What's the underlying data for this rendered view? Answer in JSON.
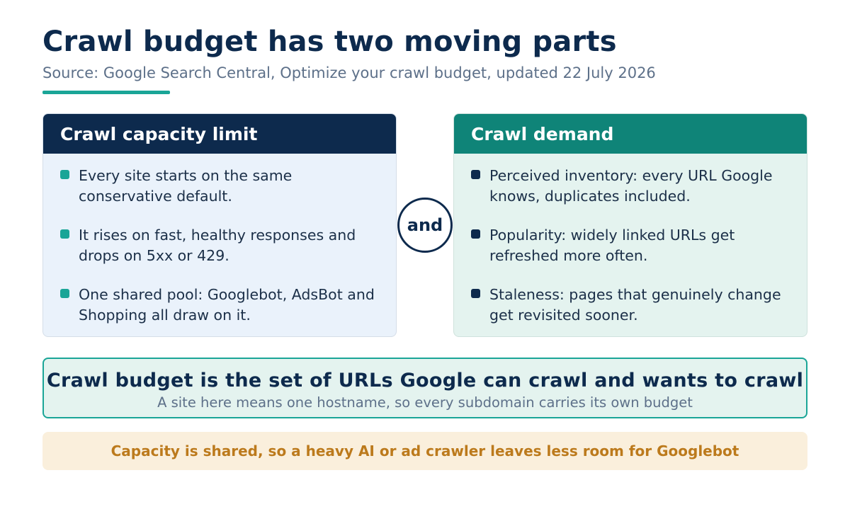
{
  "header": {
    "title": "Crawl budget has two moving parts",
    "subtitle": "Source: Google Search Central, Optimize your crawl budget, updated 22 July 2026"
  },
  "capacity": {
    "heading": "Crawl capacity limit",
    "bullets": [
      "Every site starts on the same conservative default.",
      "It rises on fast, healthy responses and drops on 5xx or 429.",
      "One shared pool: Googlebot, AdsBot and Shopping all draw on it."
    ]
  },
  "connector": "and",
  "demand": {
    "heading": "Crawl demand",
    "bullets": [
      "Perceived inventory: every URL Google knows, duplicates included.",
      "Popularity: widely linked URLs get refreshed more often.",
      "Staleness: pages that genuinely change get revisited sooner."
    ]
  },
  "definition": {
    "main": "Crawl budget is the set of URLs Google can crawl and wants to crawl",
    "note": "A site here means one hostname, so every subdomain carries its own budget"
  },
  "callout": "Capacity is shared, so a heavy AI or ad crawler leaves less room for Googlebot",
  "colors": {
    "navy": "#0d2a4d",
    "teal": "#0f8478",
    "accent_teal": "#1aa597",
    "amber_text": "#bc7a1c",
    "amber_bg": "#faefdc"
  }
}
